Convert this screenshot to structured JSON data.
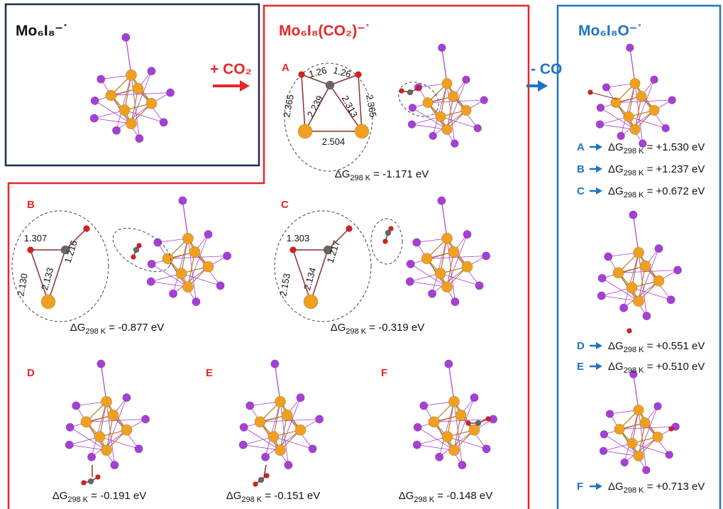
{
  "reactant": {
    "title": "Mo₆I₈⁻˙"
  },
  "step1": {
    "label": "+ CO₂"
  },
  "intermediate": {
    "title": "Mo₆I₈(CO₂)⁻˙",
    "structures": [
      {
        "label": "A",
        "bonds": [
          "1.26",
          "1.26",
          "2.365",
          "2.239",
          "2.313",
          "2.365",
          "2.504"
        ],
        "energy": {
          "delta": "ΔG",
          "sub": "298 K",
          "rest": " = -1.171 eV"
        }
      },
      {
        "label": "B",
        "bonds": [
          "1.307",
          "1.216",
          "2.130",
          "2.133"
        ],
        "energy": {
          "delta": "ΔG",
          "sub": "298 K",
          "rest": " = -0.877 eV"
        }
      },
      {
        "label": "C",
        "bonds": [
          "1.303",
          "1.217",
          "2.153",
          "2.134"
        ],
        "energy": {
          "delta": "ΔG",
          "sub": "298 K",
          "rest": " = -0.319 eV"
        }
      },
      {
        "label": "D",
        "energy": {
          "delta": "ΔG",
          "sub": "298 K",
          "rest": " = -0.191 eV"
        }
      },
      {
        "label": "E",
        "energy": {
          "delta": "ΔG",
          "sub": "298 K",
          "rest": " = -0.151 eV"
        }
      },
      {
        "label": "F",
        "energy": {
          "delta": "ΔG",
          "sub": "298 K",
          "rest": " = -0.148 eV"
        }
      }
    ]
  },
  "step2": {
    "label": "- CO"
  },
  "product": {
    "title": "Mo₆I₈O⁻˙",
    "energies": [
      {
        "label": "A",
        "energy": {
          "delta": "ΔG",
          "sub": "298 K",
          "rest": " = +1.530 eV"
        }
      },
      {
        "label": "B",
        "energy": {
          "delta": "ΔG",
          "sub": "298 K",
          "rest": " = +1.237 eV"
        }
      },
      {
        "label": "C",
        "energy": {
          "delta": "ΔG",
          "sub": "298 K",
          "rest": " = +0.672 eV"
        }
      },
      {
        "label": "D",
        "energy": {
          "delta": "ΔG",
          "sub": "298 K",
          "rest": " = +0.551 eV"
        }
      },
      {
        "label": "E",
        "energy": {
          "delta": "ΔG",
          "sub": "298 K",
          "rest": " = +0.510 eV"
        }
      },
      {
        "label": "F",
        "energy": {
          "delta": "ΔG",
          "sub": "298 K",
          "rest": " = +0.713 eV"
        }
      }
    ]
  }
}
